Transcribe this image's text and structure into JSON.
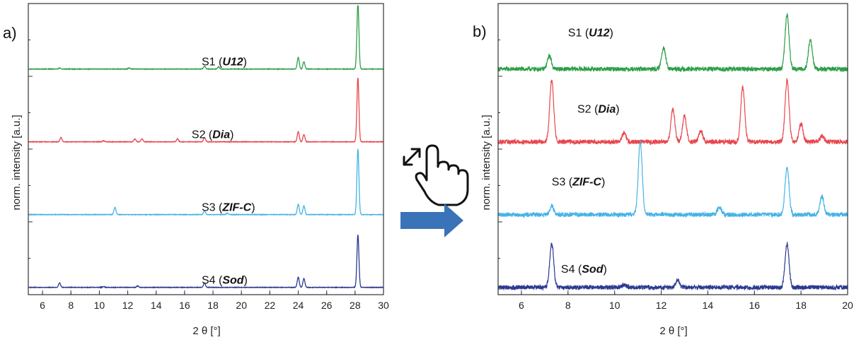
{
  "arrow_color": "#3B73B9",
  "chart_data": [
    {
      "type": "line",
      "panel_label": "a)",
      "xlabel": "2 θ [°]",
      "ylabel": "norm. intensity [a.u.]",
      "xlim": [
        5,
        30
      ],
      "ylim": [
        0,
        4
      ],
      "xticks": [
        6,
        8,
        10,
        12,
        14,
        16,
        18,
        20,
        22,
        24,
        26,
        28,
        30
      ],
      "tick_labels": [
        "6",
        "8",
        "10",
        "12",
        "14",
        "16",
        "18",
        "20",
        "22",
        "24",
        "26",
        "28",
        "30"
      ],
      "series": [
        {
          "name": "S1",
          "phase": "U12",
          "color": "#2E9E48",
          "offset": 3.0,
          "label_x": 17.2,
          "label_y": 0.15,
          "peaks": [
            [
              7.2,
              0.012
            ],
            [
              12.1,
              0.015
            ],
            [
              17.4,
              0.04
            ],
            [
              18.4,
              0.03
            ],
            [
              24.0,
              0.16
            ],
            [
              24.4,
              0.1
            ],
            [
              28.2,
              0.9
            ]
          ]
        },
        {
          "name": "S2",
          "phase": "Dia",
          "color": "#E8474E",
          "offset": 2.0,
          "label_x": 16.5,
          "label_y": 0.15,
          "peaks": [
            [
              7.3,
              0.06
            ],
            [
              10.3,
              0.015
            ],
            [
              12.5,
              0.04
            ],
            [
              13.0,
              0.04
            ],
            [
              15.5,
              0.04
            ],
            [
              17.4,
              0.06
            ],
            [
              24.0,
              0.14
            ],
            [
              24.4,
              0.1
            ],
            [
              28.2,
              0.88
            ]
          ]
        },
        {
          "name": "S3",
          "phase": "ZIF-C",
          "color": "#45B3E6",
          "offset": 1.0,
          "label_x": 17.2,
          "label_y": 0.15,
          "peaks": [
            [
              11.1,
              0.1
            ],
            [
              17.4,
              0.05
            ],
            [
              19.0,
              0.02
            ],
            [
              24.0,
              0.14
            ],
            [
              24.4,
              0.12
            ],
            [
              28.2,
              0.9
            ]
          ]
        },
        {
          "name": "S4",
          "phase": "Sod",
          "color": "#2B3990",
          "offset": 0.0,
          "label_x": 17.2,
          "label_y": 0.15,
          "peaks": [
            [
              7.2,
              0.06
            ],
            [
              10.3,
              0.01
            ],
            [
              12.7,
              0.02
            ],
            [
              17.4,
              0.06
            ],
            [
              24.0,
              0.14
            ],
            [
              24.4,
              0.12
            ],
            [
              28.2,
              0.72
            ]
          ]
        }
      ]
    },
    {
      "type": "line",
      "panel_label": "b)",
      "xlabel": "2 θ [°]",
      "ylabel": "norm. intensity [a.u.]",
      "xlim": [
        5,
        20
      ],
      "ylim": [
        0,
        4
      ],
      "xticks": [
        6,
        8,
        10,
        12,
        14,
        16,
        18,
        20
      ],
      "tick_labels": [
        "6",
        "8",
        "10",
        "12",
        "14",
        "16",
        "18",
        "20"
      ],
      "series": [
        {
          "name": "S1",
          "phase": "U12",
          "color": "#2E9E48",
          "offset": 3.0,
          "label_x": 8.0,
          "label_y": 0.55,
          "peaks": [
            [
              7.2,
              0.18
            ],
            [
              12.1,
              0.3
            ],
            [
              17.4,
              0.75
            ],
            [
              18.4,
              0.4
            ]
          ]
        },
        {
          "name": "S2",
          "phase": "Dia",
          "color": "#E8474E",
          "offset": 2.0,
          "label_x": 8.4,
          "label_y": 0.5,
          "peaks": [
            [
              7.3,
              0.85
            ],
            [
              10.4,
              0.12
            ],
            [
              12.5,
              0.45
            ],
            [
              13.0,
              0.35
            ],
            [
              13.7,
              0.15
            ],
            [
              15.5,
              0.75
            ],
            [
              17.4,
              0.85
            ],
            [
              18.0,
              0.25
            ],
            [
              18.9,
              0.08
            ]
          ]
        },
        {
          "name": "S3",
          "phase": "ZIF-C",
          "color": "#45B3E6",
          "offset": 1.0,
          "label_x": 7.3,
          "label_y": 0.5,
          "peaks": [
            [
              7.3,
              0.12
            ],
            [
              11.1,
              1.0
            ],
            [
              14.5,
              0.1
            ],
            [
              17.4,
              0.65
            ],
            [
              18.9,
              0.25
            ]
          ]
        },
        {
          "name": "S4",
          "phase": "Sod",
          "color": "#2B3990",
          "offset": 0.0,
          "label_x": 7.7,
          "label_y": 0.3,
          "peaks": [
            [
              7.3,
              0.6
            ],
            [
              10.4,
              0.04
            ],
            [
              12.7,
              0.1
            ],
            [
              17.4,
              0.6
            ]
          ]
        }
      ]
    }
  ]
}
